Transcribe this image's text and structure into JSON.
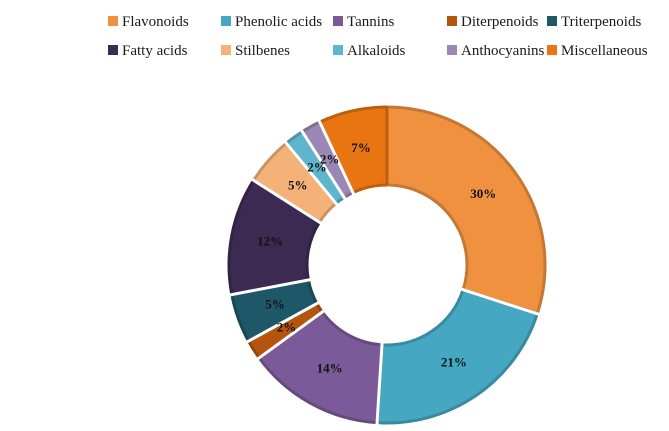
{
  "chart_data": {
    "type": "pie",
    "variant": "donut",
    "title": "",
    "legend_position": "top",
    "categories": [
      "Flavonoids",
      "Phenolic acids",
      "Tannins",
      "Diterpenoids",
      "Triterpenoids",
      "Fatty acids",
      "Stilbenes",
      "Alkaloids",
      "Anthocyanins",
      "Miscellaneous"
    ],
    "values": [
      30,
      21,
      14,
      2,
      5,
      12,
      5,
      2,
      2,
      7
    ],
    "labels": [
      "30%",
      "21%",
      "14%",
      "2%",
      "5%",
      "12%",
      "5%",
      "2%",
      "2%",
      "7%"
    ],
    "colors": [
      "#F0913F",
      "#45A7C2",
      "#7B5A99",
      "#B5540F",
      "#1E5767",
      "#3D2A52",
      "#F5B278",
      "#5DB6CC",
      "#9B87B3",
      "#E87412"
    ]
  }
}
